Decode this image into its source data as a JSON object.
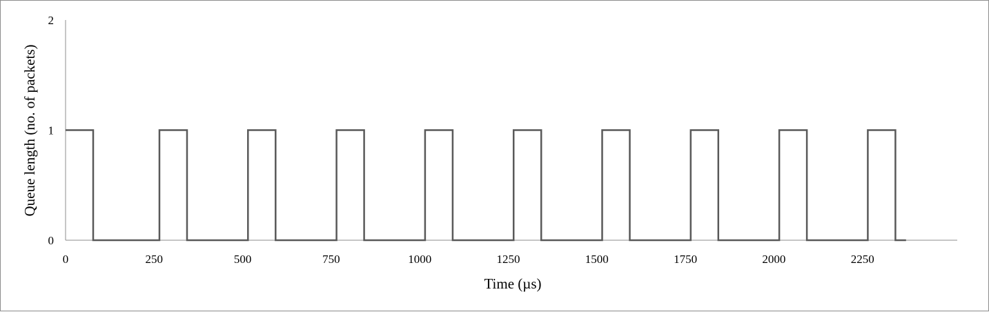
{
  "chart_data": {
    "type": "line",
    "title": "",
    "xlabel": "Time (µs)",
    "ylabel": "Queue length (no. of packets)",
    "xlim": [
      0,
      2500
    ],
    "ylim": [
      0,
      2
    ],
    "x_ticks": [
      0,
      250,
      500,
      750,
      1000,
      1250,
      1500,
      1750,
      2000,
      2250
    ],
    "y_ticks": [
      0,
      1,
      2
    ],
    "grid": false,
    "legend": "none",
    "line_color": "#595959",
    "series": [
      {
        "step": "horizontal-vertical",
        "points": [
          [
            0,
            1
          ],
          [
            78,
            1
          ],
          [
            78,
            0
          ],
          [
            265,
            0
          ],
          [
            265,
            1
          ],
          [
            343,
            1
          ],
          [
            343,
            0
          ],
          [
            515,
            0
          ],
          [
            515,
            1
          ],
          [
            593,
            1
          ],
          [
            593,
            0
          ],
          [
            765,
            0
          ],
          [
            765,
            1
          ],
          [
            843,
            1
          ],
          [
            843,
            0
          ],
          [
            1015,
            0
          ],
          [
            1015,
            1
          ],
          [
            1093,
            1
          ],
          [
            1093,
            0
          ],
          [
            1265,
            0
          ],
          [
            1265,
            1
          ],
          [
            1343,
            1
          ],
          [
            1343,
            0
          ],
          [
            1515,
            0
          ],
          [
            1515,
            1
          ],
          [
            1593,
            1
          ],
          [
            1593,
            0
          ],
          [
            1765,
            0
          ],
          [
            1765,
            1
          ],
          [
            1843,
            1
          ],
          [
            1843,
            0
          ],
          [
            2015,
            0
          ],
          [
            2015,
            1
          ],
          [
            2093,
            1
          ],
          [
            2093,
            0
          ],
          [
            2265,
            0
          ],
          [
            2265,
            1
          ],
          [
            2343,
            1
          ],
          [
            2343,
            0
          ],
          [
            2373,
            0
          ]
        ]
      }
    ]
  }
}
